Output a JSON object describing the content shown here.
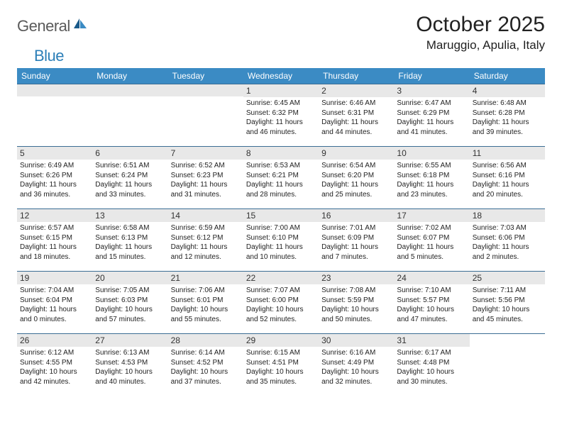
{
  "logo": {
    "text1": "General",
    "text2": "Blue"
  },
  "title": "October 2025",
  "location": "Maruggio, Apulia, Italy",
  "colors": {
    "header_bg": "#3b8bc4",
    "header_text": "#ffffff",
    "row_border": "#3b6d94",
    "daynum_bg": "#e8e8e8",
    "logo_gray": "#5a5a5a",
    "logo_blue": "#2c7fb8",
    "body_bg": "#ffffff",
    "text": "#222222"
  },
  "fonts": {
    "title_size": 30,
    "location_size": 17,
    "header_size": 12,
    "daynum_size": 12,
    "content_size": 10
  },
  "dayNames": [
    "Sunday",
    "Monday",
    "Tuesday",
    "Wednesday",
    "Thursday",
    "Friday",
    "Saturday"
  ],
  "weeks": [
    [
      null,
      null,
      null,
      {
        "n": "1",
        "sr": "6:45 AM",
        "ss": "6:32 PM",
        "dl": "11 hours and 46 minutes."
      },
      {
        "n": "2",
        "sr": "6:46 AM",
        "ss": "6:31 PM",
        "dl": "11 hours and 44 minutes."
      },
      {
        "n": "3",
        "sr": "6:47 AM",
        "ss": "6:29 PM",
        "dl": "11 hours and 41 minutes."
      },
      {
        "n": "4",
        "sr": "6:48 AM",
        "ss": "6:28 PM",
        "dl": "11 hours and 39 minutes."
      }
    ],
    [
      {
        "n": "5",
        "sr": "6:49 AM",
        "ss": "6:26 PM",
        "dl": "11 hours and 36 minutes."
      },
      {
        "n": "6",
        "sr": "6:51 AM",
        "ss": "6:24 PM",
        "dl": "11 hours and 33 minutes."
      },
      {
        "n": "7",
        "sr": "6:52 AM",
        "ss": "6:23 PM",
        "dl": "11 hours and 31 minutes."
      },
      {
        "n": "8",
        "sr": "6:53 AM",
        "ss": "6:21 PM",
        "dl": "11 hours and 28 minutes."
      },
      {
        "n": "9",
        "sr": "6:54 AM",
        "ss": "6:20 PM",
        "dl": "11 hours and 25 minutes."
      },
      {
        "n": "10",
        "sr": "6:55 AM",
        "ss": "6:18 PM",
        "dl": "11 hours and 23 minutes."
      },
      {
        "n": "11",
        "sr": "6:56 AM",
        "ss": "6:16 PM",
        "dl": "11 hours and 20 minutes."
      }
    ],
    [
      {
        "n": "12",
        "sr": "6:57 AM",
        "ss": "6:15 PM",
        "dl": "11 hours and 18 minutes."
      },
      {
        "n": "13",
        "sr": "6:58 AM",
        "ss": "6:13 PM",
        "dl": "11 hours and 15 minutes."
      },
      {
        "n": "14",
        "sr": "6:59 AM",
        "ss": "6:12 PM",
        "dl": "11 hours and 12 minutes."
      },
      {
        "n": "15",
        "sr": "7:00 AM",
        "ss": "6:10 PM",
        "dl": "11 hours and 10 minutes."
      },
      {
        "n": "16",
        "sr": "7:01 AM",
        "ss": "6:09 PM",
        "dl": "11 hours and 7 minutes."
      },
      {
        "n": "17",
        "sr": "7:02 AM",
        "ss": "6:07 PM",
        "dl": "11 hours and 5 minutes."
      },
      {
        "n": "18",
        "sr": "7:03 AM",
        "ss": "6:06 PM",
        "dl": "11 hours and 2 minutes."
      }
    ],
    [
      {
        "n": "19",
        "sr": "7:04 AM",
        "ss": "6:04 PM",
        "dl": "11 hours and 0 minutes."
      },
      {
        "n": "20",
        "sr": "7:05 AM",
        "ss": "6:03 PM",
        "dl": "10 hours and 57 minutes."
      },
      {
        "n": "21",
        "sr": "7:06 AM",
        "ss": "6:01 PM",
        "dl": "10 hours and 55 minutes."
      },
      {
        "n": "22",
        "sr": "7:07 AM",
        "ss": "6:00 PM",
        "dl": "10 hours and 52 minutes."
      },
      {
        "n": "23",
        "sr": "7:08 AM",
        "ss": "5:59 PM",
        "dl": "10 hours and 50 minutes."
      },
      {
        "n": "24",
        "sr": "7:10 AM",
        "ss": "5:57 PM",
        "dl": "10 hours and 47 minutes."
      },
      {
        "n": "25",
        "sr": "7:11 AM",
        "ss": "5:56 PM",
        "dl": "10 hours and 45 minutes."
      }
    ],
    [
      {
        "n": "26",
        "sr": "6:12 AM",
        "ss": "4:55 PM",
        "dl": "10 hours and 42 minutes."
      },
      {
        "n": "27",
        "sr": "6:13 AM",
        "ss": "4:53 PM",
        "dl": "10 hours and 40 minutes."
      },
      {
        "n": "28",
        "sr": "6:14 AM",
        "ss": "4:52 PM",
        "dl": "10 hours and 37 minutes."
      },
      {
        "n": "29",
        "sr": "6:15 AM",
        "ss": "4:51 PM",
        "dl": "10 hours and 35 minutes."
      },
      {
        "n": "30",
        "sr": "6:16 AM",
        "ss": "4:49 PM",
        "dl": "10 hours and 32 minutes."
      },
      {
        "n": "31",
        "sr": "6:17 AM",
        "ss": "4:48 PM",
        "dl": "10 hours and 30 minutes."
      },
      null
    ]
  ],
  "labels": {
    "sunrise": "Sunrise: ",
    "sunset": "Sunset: ",
    "daylight": "Daylight: "
  }
}
